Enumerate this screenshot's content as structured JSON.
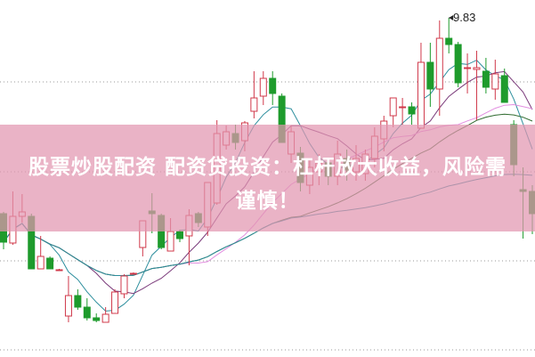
{
  "chart_data": {
    "type": "candlestick",
    "grid": true,
    "colors": {
      "up": "#d0384a",
      "down": "#1e9b2c",
      "ma": [
        "#2e8f9e",
        "#7a3a7a",
        "#e28ee0",
        "#2f6b2f",
        "#2a8c9a"
      ]
    },
    "ylim": [
      6.0,
      10.03
    ],
    "candles": [
      [
        7.63,
        7.31,
        7.65,
        7.23
      ],
      [
        7.3,
        7.6,
        7.88,
        7.28
      ],
      [
        7.6,
        7.65,
        7.85,
        7.53
      ],
      [
        7.6,
        7.01,
        7.63,
        7.01
      ],
      [
        7.01,
        7.15,
        7.38,
        7.01
      ],
      [
        7.13,
        7.01,
        7.15,
        7.01
      ],
      [
        7.0,
        7.0,
        7.01,
        6.99
      ],
      [
        6.48,
        6.71,
        6.93,
        6.41
      ],
      [
        6.71,
        6.58,
        6.78,
        6.55
      ],
      [
        6.58,
        6.46,
        6.68,
        6.43
      ],
      [
        6.46,
        6.43,
        6.51,
        6.41
      ],
      [
        6.41,
        6.5,
        6.58,
        6.41
      ],
      [
        6.51,
        6.75,
        6.78,
        6.51
      ],
      [
        6.73,
        6.93,
        6.95,
        6.68
      ],
      [
        6.96,
        6.96,
        6.97,
        6.95
      ],
      [
        7.25,
        7.55,
        7.55,
        7.15
      ],
      [
        7.66,
        7.63,
        7.86,
        7.41
      ],
      [
        7.61,
        7.25,
        7.63,
        7.23
      ],
      [
        7.21,
        7.43,
        7.58,
        7.21
      ],
      [
        7.43,
        7.35,
        7.45,
        7.31
      ],
      [
        7.38,
        7.61,
        7.68,
        7.05
      ],
      [
        7.63,
        7.53,
        7.65,
        7.48
      ],
      [
        7.48,
        7.98,
        7.98,
        7.38
      ],
      [
        7.75,
        8.53,
        8.68,
        7.73
      ],
      [
        8.4,
        8.55,
        8.62,
        8.35
      ],
      [
        8.53,
        8.43,
        8.63,
        8.35
      ],
      [
        8.45,
        8.65,
        8.67,
        8.33
      ],
      [
        8.78,
        8.93,
        9.23,
        8.7
      ],
      [
        8.95,
        9.15,
        9.23,
        8.85
      ],
      [
        9.15,
        8.98,
        9.23,
        8.85
      ],
      [
        8.95,
        8.43,
        8.98,
        8.43
      ],
      [
        8.3,
        8.55,
        8.62,
        8.2
      ],
      [
        8.31,
        7.98,
        8.38,
        7.88
      ],
      [
        7.95,
        8.15,
        8.25,
        7.85
      ],
      [
        8.1,
        8.2,
        8.3,
        7.95
      ],
      [
        8.2,
        8.05,
        8.25,
        7.95
      ],
      [
        8.05,
        8.3,
        8.45,
        7.95
      ],
      [
        8.25,
        8.12,
        8.35,
        8.0
      ],
      [
        8.1,
        8.25,
        8.4,
        8.0
      ],
      [
        8.08,
        8.3,
        8.35,
        8.0
      ],
      [
        8.25,
        8.5,
        8.6,
        8.15
      ],
      [
        8.47,
        8.67,
        8.73,
        8.33
      ],
      [
        8.73,
        8.93,
        8.93,
        8.6
      ],
      [
        8.83,
        8.83,
        8.93,
        8.63
      ],
      [
        8.83,
        8.75,
        8.88,
        8.63
      ],
      [
        8.59,
        9.33,
        9.55,
        8.63
      ],
      [
        9.33,
        9.03,
        9.55,
        8.83
      ],
      [
        9.03,
        9.6,
        9.8,
        8.73
      ],
      [
        9.6,
        9.53,
        9.83,
        9.43
      ],
      [
        9.53,
        9.1,
        9.56,
        9.05
      ],
      [
        9.27,
        9.27,
        9.43,
        8.98
      ],
      [
        9.25,
        9.27,
        9.46,
        8.68
      ],
      [
        9.23,
        9.05,
        9.38,
        8.98
      ],
      [
        9.03,
        9.2,
        9.36,
        8.91
      ],
      [
        9.18,
        8.88,
        9.26,
        8.88
      ],
      [
        8.63,
        8.18,
        8.68,
        8.05
      ],
      [
        7.9,
        7.88,
        8.15,
        7.35
      ],
      [
        7.88,
        7.63,
        7.95,
        7.4
      ]
    ],
    "ma_periods": [
      5,
      10,
      20,
      30,
      60
    ],
    "annotations": [
      {
        "label": "9.83",
        "candle_index": 48
      }
    ]
  },
  "banner": {
    "line1": "股票炒股配资 配资贷投资：杠杆放大收益，风险需",
    "line2": "谨慎！"
  }
}
